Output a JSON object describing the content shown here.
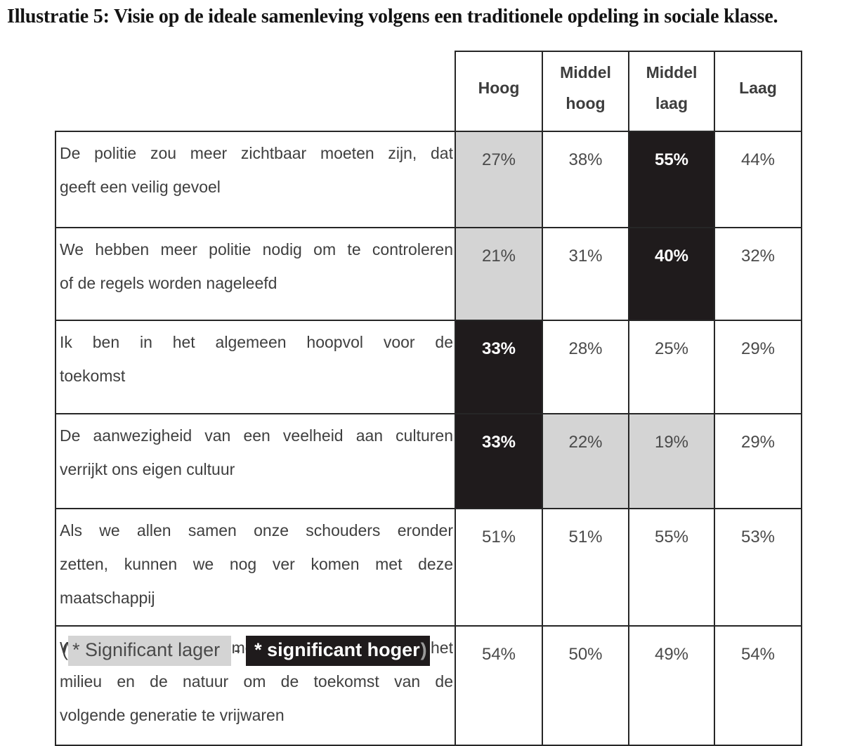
{
  "title": "Illustratie 5: Visie op de ideale samenleving volgens een traditionele opdeling in sociale klasse.",
  "table": {
    "columns": [
      "Hoog",
      "Middel hoog",
      "Middel laag",
      "Laag"
    ],
    "rows": [
      {
        "lines": [
          "De politie zou meer zichtbaar moeten zijn, dat",
          "geeft een veilig gevoel"
        ],
        "values": [
          "27%",
          "38%",
          "55%",
          "44%"
        ],
        "marks": [
          "lower",
          "none",
          "higher",
          "none"
        ]
      },
      {
        "lines": [
          "We hebben meer politie nodig om te controleren",
          "of de regels worden nageleefd"
        ],
        "values": [
          "21%",
          "31%",
          "40%",
          "32%"
        ],
        "marks": [
          "lower",
          "none",
          "higher",
          "none"
        ]
      },
      {
        "lines": [
          "Ik ben in het algemeen hoopvol voor de",
          "toekomst"
        ],
        "values": [
          "33%",
          "28%",
          "25%",
          "29%"
        ],
        "marks": [
          "higher",
          "none",
          "none",
          "none"
        ]
      },
      {
        "lines": [
          "De aanwezigheid van een veelheid aan culturen",
          "verrijkt ons eigen cultuur"
        ],
        "values": [
          "33%",
          "22%",
          "19%",
          "29%"
        ],
        "marks": [
          "higher",
          "lower",
          "lower",
          "none"
        ]
      },
      {
        "lines": [
          "Als we allen samen onze schouders eronder",
          "zetten, kunnen we nog ver komen met deze",
          "maatschappij"
        ],
        "values": [
          "51%",
          "51%",
          "55%",
          "53%"
        ],
        "marks": [
          "none",
          "none",
          "none",
          "none"
        ]
      },
      {
        "lines": [
          "We zouden meer moeten investeren in het",
          "milieu en de natuur om de toekomst van de",
          "volgende generatie te vrijwaren"
        ],
        "values": [
          "54%",
          "50%",
          "49%",
          "54%"
        ],
        "marks": [
          "none",
          "none",
          "none",
          "none"
        ]
      }
    ]
  },
  "legend": {
    "open_paren": "(",
    "lower_label": "* Significant lager",
    "separator": "-",
    "higher_label": "* significant hoger",
    "close_paren": ")"
  },
  "colors": {
    "lower_bg": "#d4d4d4",
    "higher_bg": "#1f1b1c",
    "border": "#262626",
    "text": "#3f3f3f"
  }
}
